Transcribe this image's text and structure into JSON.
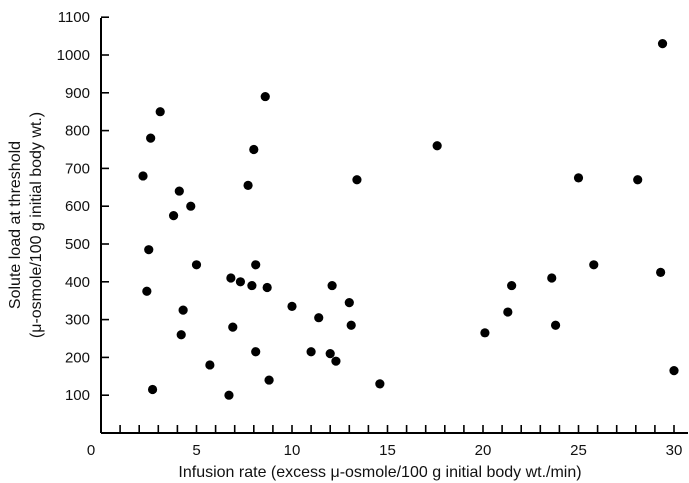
{
  "chart_data": {
    "type": "scatter",
    "title": "",
    "xlabel": "Infusion rate (excess μ-osmole/100 g initial body wt./min)",
    "ylabel_line1": "Solute load at threshold",
    "ylabel_line2": "(μ-osmole/100 g initial body wt.)",
    "xlim": [
      0,
      31
    ],
    "ylim": [
      0,
      1100
    ],
    "x_ticks": [
      0,
      5,
      10,
      15,
      20,
      25,
      30
    ],
    "y_ticks": [
      100,
      200,
      300,
      400,
      500,
      600,
      700,
      800,
      900,
      1000,
      1100
    ],
    "grid": false,
    "legend": "none",
    "point_color": "#000000",
    "series": [
      {
        "points": [
          [
            2.2,
            680
          ],
          [
            2.4,
            375
          ],
          [
            2.5,
            485
          ],
          [
            2.6,
            780
          ],
          [
            2.7,
            115
          ],
          [
            3.1,
            850
          ],
          [
            3.8,
            575
          ],
          [
            4.1,
            640
          ],
          [
            4.2,
            260
          ],
          [
            4.3,
            325
          ],
          [
            4.7,
            600
          ],
          [
            5.0,
            445
          ],
          [
            5.7,
            180
          ],
          [
            6.7,
            100
          ],
          [
            6.8,
            410
          ],
          [
            6.9,
            280
          ],
          [
            7.3,
            400
          ],
          [
            7.7,
            655
          ],
          [
            7.9,
            390
          ],
          [
            8.0,
            750
          ],
          [
            8.1,
            445
          ],
          [
            8.1,
            215
          ],
          [
            8.6,
            890
          ],
          [
            8.7,
            385
          ],
          [
            8.8,
            140
          ],
          [
            10.0,
            335
          ],
          [
            11.0,
            215
          ],
          [
            11.4,
            305
          ],
          [
            12.0,
            210
          ],
          [
            12.1,
            390
          ],
          [
            12.3,
            190
          ],
          [
            13.0,
            345
          ],
          [
            13.1,
            285
          ],
          [
            13.4,
            670
          ],
          [
            14.6,
            130
          ],
          [
            17.6,
            760
          ],
          [
            20.1,
            265
          ],
          [
            21.3,
            320
          ],
          [
            21.5,
            390
          ],
          [
            23.6,
            410
          ],
          [
            23.8,
            285
          ],
          [
            25.0,
            675
          ],
          [
            25.8,
            445
          ],
          [
            28.1,
            670
          ],
          [
            29.3,
            425
          ],
          [
            29.4,
            1030
          ],
          [
            30.0,
            165
          ]
        ]
      }
    ]
  }
}
